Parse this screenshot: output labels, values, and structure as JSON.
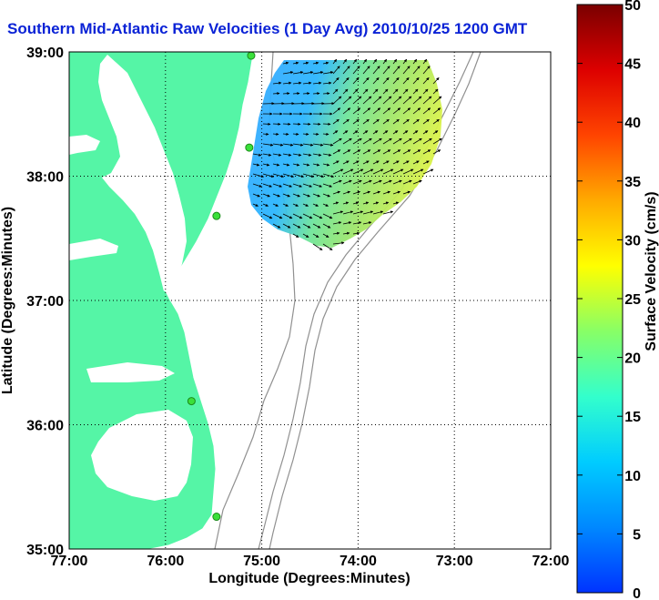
{
  "title": "Southern Mid-Atlantic Raw Velocities (1 Day Avg) 2010/10/25 1200 GMT",
  "map": {
    "xlabel": "Longitude (Degrees:Minutes)",
    "ylabel": "Latitude (Degrees:Minutes)",
    "x_ticks": [
      "77:00",
      "76:00",
      "75:00",
      "74:00",
      "73:00",
      "72:00"
    ],
    "y_ticks": [
      "39:00",
      "38:00",
      "37:00",
      "36:00",
      "35:00"
    ],
    "lon_range": [
      -77,
      -72
    ],
    "lat_range": [
      35,
      39
    ],
    "grid": "dotted",
    "land_color": "#55f5a6",
    "water_color": "#ffffff",
    "bathymetry_color": "#909090",
    "stations_color": "#3ae03a"
  },
  "colorbar": {
    "label": "Surface Velocity (cm/s)",
    "ticks": [
      "0",
      "5",
      "10",
      "15",
      "20",
      "25",
      "30",
      "35",
      "40",
      "45",
      "50"
    ],
    "range": [
      0,
      50
    ],
    "stops": [
      "#0033ff",
      "#0088ff",
      "#00ccff",
      "#33ffcc",
      "#88ff66",
      "#ffff00",
      "#ffaa00",
      "#ff4400",
      "#dd0000",
      "#7a0000"
    ]
  },
  "stations": [
    {
      "lon": -75.11,
      "lat": 38.97
    },
    {
      "lon": -75.13,
      "lat": 38.23
    },
    {
      "lon": -75.47,
      "lat": 37.68
    },
    {
      "lon": -75.73,
      "lat": 36.19
    },
    {
      "lon": -75.47,
      "lat": 35.26
    }
  ]
}
